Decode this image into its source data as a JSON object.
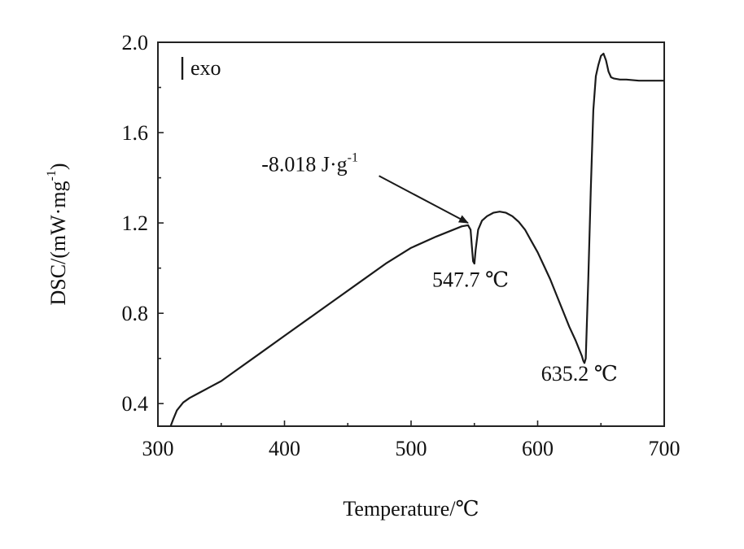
{
  "chart_data": {
    "type": "line",
    "title": "",
    "xlabel": "Temperature/℃",
    "ylabel": "DSC/(mW·mg",
    "ylabel_superscript": "-1",
    "ylabel_close": ")",
    "xlim": [
      300,
      700
    ],
    "ylim": [
      0.3,
      2.0
    ],
    "x_ticks": [
      300,
      400,
      500,
      600,
      700
    ],
    "x_tick_labels": [
      "300",
      "400",
      "500",
      "600",
      "700"
    ],
    "y_ticks": [
      0.4,
      0.8,
      1.2,
      1.6,
      2.0
    ],
    "y_tick_labels": [
      "0.4",
      "0.8",
      "1.2",
      "1.6",
      "2.0"
    ],
    "grid": false,
    "legend": "none",
    "series": [
      {
        "x": [
          310,
          312,
          315,
          320,
          325,
          330,
          340,
          350,
          360,
          380,
          400,
          420,
          440,
          460,
          480,
          500,
          520,
          540,
          545,
          547,
          548,
          549,
          550,
          551,
          553,
          556,
          560,
          565,
          570,
          575,
          580,
          585,
          590,
          595,
          600,
          605,
          610,
          615,
          620,
          625,
          630,
          635,
          636,
          637,
          638,
          640,
          642,
          644,
          646,
          648,
          650,
          652,
          654,
          656,
          658,
          660,
          665,
          670,
          680,
          690,
          700
        ],
        "y": [
          0.3,
          0.33,
          0.37,
          0.405,
          0.425,
          0.44,
          0.47,
          0.5,
          0.54,
          0.62,
          0.7,
          0.78,
          0.86,
          0.94,
          1.02,
          1.09,
          1.14,
          1.185,
          1.19,
          1.17,
          1.1,
          1.03,
          1.02,
          1.08,
          1.17,
          1.21,
          1.23,
          1.245,
          1.25,
          1.245,
          1.23,
          1.205,
          1.17,
          1.12,
          1.07,
          1.01,
          0.95,
          0.88,
          0.81,
          0.74,
          0.68,
          0.61,
          0.59,
          0.58,
          0.6,
          0.95,
          1.35,
          1.7,
          1.85,
          1.9,
          1.94,
          1.95,
          1.92,
          1.87,
          1.845,
          1.84,
          1.835,
          1.835,
          1.83,
          1.83,
          1.83
        ]
      }
    ],
    "exo_label": "exo",
    "annotations": [
      {
        "text": "-8.018 J·g",
        "superscript": "-1",
        "text_x": 420,
        "text_y": 1.43,
        "points_to": [
          545,
          1.2
        ]
      },
      {
        "text": "547.7 ℃",
        "text_x": 547,
        "text_y": 0.99
      },
      {
        "text": "635.2 ℃",
        "text_x": 633,
        "text_y": 0.56
      }
    ]
  }
}
